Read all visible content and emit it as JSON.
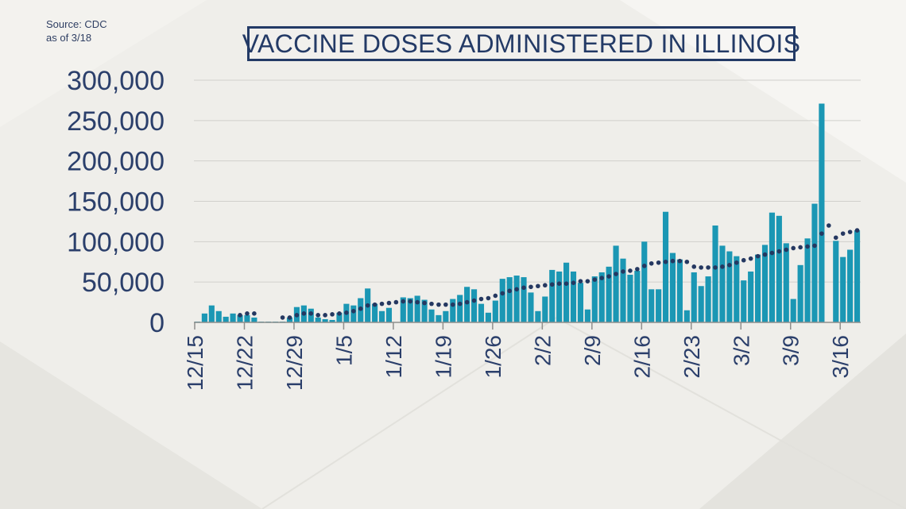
{
  "source": {
    "line1": "Source: CDC",
    "line2": "as of 3/18"
  },
  "colors": {
    "bar": "#1b97b4",
    "dots": "#253861",
    "text": "#2b3f6b",
    "grid": "#d0d0cc",
    "background": "#efeeea"
  },
  "chart_data": {
    "type": "bar",
    "title": "VACCINE DOSES ADMINISTERED IN ILLINOIS",
    "xlabel": "",
    "ylabel": "",
    "ylim": [
      0,
      300000
    ],
    "yticks": [
      0,
      50000,
      100000,
      150000,
      200000,
      250000,
      300000
    ],
    "ytick_labels": [
      "0",
      "50,000",
      "100,000",
      "150,000",
      "200,000",
      "250,000",
      "300,000"
    ],
    "x_tick_labels": [
      "12/15",
      "12/22",
      "12/29",
      "1/5",
      "1/12",
      "1/19",
      "1/26",
      "2/2",
      "2/9",
      "2/16",
      "2/23",
      "3/2",
      "3/9",
      "3/16"
    ],
    "x_tick_day_index": [
      0,
      7,
      14,
      21,
      28,
      35,
      42,
      49,
      56,
      63,
      70,
      77,
      84,
      91
    ],
    "grid": true,
    "legend": "none",
    "series": [
      {
        "type": "bar",
        "values": [
          1000,
          11000,
          21000,
          14000,
          7000,
          11000,
          9000,
          9000,
          6000,
          1000,
          1000,
          1000,
          1000,
          6000,
          19000,
          21000,
          17000,
          6000,
          4000,
          3000,
          12000,
          23000,
          21000,
          30000,
          42000,
          23000,
          14000,
          18000,
          0,
          31000,
          30000,
          33000,
          28000,
          16000,
          9000,
          14000,
          29000,
          34000,
          44000,
          41000,
          23000,
          12000,
          27000,
          54000,
          56000,
          58000,
          56000,
          37000,
          14000,
          32000,
          65000,
          63000,
          74000,
          63000,
          49000,
          16000,
          57000,
          62000,
          69000,
          95000,
          79000,
          59000,
          64000,
          100000,
          41000,
          41000,
          137000,
          86000,
          78000,
          15000,
          62000,
          45000,
          57000,
          120000,
          95000,
          88000,
          82000,
          52000,
          63000,
          84000,
          96000,
          136000,
          132000,
          98000,
          29000,
          71000,
          104000,
          147000,
          271000,
          0,
          101000,
          81000,
          90000,
          114000
        ]
      },
      {
        "type": "scatter",
        "values": [
          null,
          null,
          null,
          null,
          null,
          null,
          9000,
          11000,
          11000,
          null,
          null,
          null,
          6000,
          6000,
          9000,
          11000,
          11000,
          9000,
          9000,
          10000,
          11000,
          12000,
          14000,
          17000,
          21000,
          22000,
          23000,
          24000,
          25000,
          26000,
          26000,
          25000,
          24000,
          23000,
          22000,
          22000,
          22000,
          23000,
          25000,
          27000,
          29000,
          30000,
          33000,
          36000,
          39000,
          41000,
          43000,
          44000,
          45000,
          46000,
          47000,
          48000,
          48000,
          49000,
          51000,
          51000,
          53000,
          55000,
          57000,
          60000,
          63000,
          64000,
          66000,
          70000,
          73000,
          74000,
          75000,
          76000,
          76000,
          75000,
          69000,
          68000,
          68000,
          68000,
          69000,
          71000,
          74000,
          77000,
          79000,
          82000,
          84000,
          86000,
          88000,
          90000,
          92000,
          93000,
          94000,
          95000,
          110000,
          120000,
          105000,
          110000,
          112000,
          114000
        ]
      }
    ]
  }
}
